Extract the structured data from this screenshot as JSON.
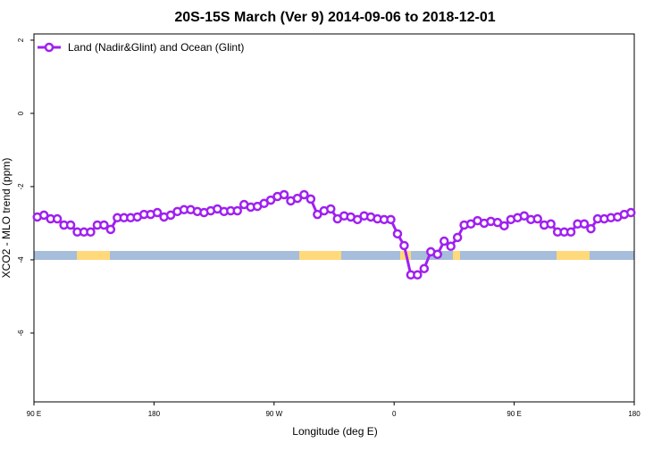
{
  "chart_data": {
    "type": "line",
    "title": "20S-15S March (Ver 9)   2014-09-06 to 2018-12-01",
    "x_label": "Longitude (deg E)",
    "y_label": "XCO2 - MLO trend (ppm)",
    "xlim": [
      90,
      540
    ],
    "ylim": [
      -7.88,
      2.17
    ],
    "xticks": [
      {
        "value": 90,
        "label": "90 E"
      },
      180,
      {
        "value": 270,
        "label": "90 W"
      },
      {
        "value": 360,
        "label": "0"
      },
      {
        "value": 450,
        "label": "90 E"
      },
      {
        "value": 540,
        "label": "180"
      }
    ],
    "yticks": [
      2,
      0,
      -2,
      -4,
      -6
    ],
    "legend": "top-left",
    "x": [
      92.5,
      97.5,
      102.5,
      107.5,
      112.5,
      117.5,
      122.5,
      127.5,
      132.5,
      137.5,
      142.5,
      147.5,
      152.5,
      157.5,
      162.5,
      167.5,
      172.5,
      177.5,
      182.5,
      187.5,
      192.5,
      197.5,
      202.5,
      207.5,
      212.5,
      217.5,
      222.5,
      227.5,
      232.5,
      237.5,
      242.5,
      247.5,
      252.5,
      257.5,
      262.5,
      267.5,
      272.5,
      277.5,
      282.5,
      287.5,
      292.5,
      297.5,
      302.5,
      307.5,
      312.5,
      317.5,
      322.5,
      327.5,
      332.5,
      337.5,
      342.5,
      347.5,
      352.5,
      357.5,
      362.5,
      367.5,
      372.5,
      377.5,
      382.5,
      387.5,
      392.5,
      397.5,
      402.5,
      407.5,
      412.5,
      417.5,
      422.5,
      427.5,
      432.5,
      437.5,
      442.5,
      447.5,
      452.5,
      457.5,
      462.5,
      467.5,
      472.5,
      477.5,
      482.5,
      487.5,
      492.5,
      497.5,
      502.5,
      507.5,
      512.5,
      517.5,
      522.5,
      527.5,
      532.5,
      537.5
    ],
    "series": [
      {
        "name": "Land (Nadir&Glint) and Ocean (Glint)",
        "color": "#a020f0",
        "values": [
          -2.83,
          -2.78,
          -2.88,
          -2.88,
          -3.05,
          -3.05,
          -3.24,
          -3.24,
          -3.24,
          -3.05,
          -3.05,
          -3.17,
          -2.85,
          -2.85,
          -2.85,
          -2.83,
          -2.76,
          -2.76,
          -2.71,
          -2.83,
          -2.78,
          -2.68,
          -2.63,
          -2.63,
          -2.68,
          -2.71,
          -2.66,
          -2.61,
          -2.68,
          -2.66,
          -2.66,
          -2.49,
          -2.56,
          -2.54,
          -2.46,
          -2.37,
          -2.27,
          -2.22,
          -2.39,
          -2.32,
          -2.22,
          -2.34,
          -2.76,
          -2.66,
          -2.61,
          -2.88,
          -2.8,
          -2.83,
          -2.9,
          -2.8,
          -2.83,
          -2.88,
          -2.9,
          -2.9,
          -3.29,
          -3.61,
          -4.41,
          -4.41,
          -4.24,
          -3.78,
          -3.85,
          -3.49,
          -3.63,
          -3.39,
          -3.05,
          -3.02,
          -2.93,
          -3.0,
          -2.95,
          -2.98,
          -3.07,
          -2.9,
          -2.85,
          -2.8,
          -2.9,
          -2.88,
          -3.05,
          -3.02,
          -3.24,
          -3.24,
          -3.24,
          -3.02,
          -3.02,
          -3.15,
          -2.88,
          -2.88,
          -2.85,
          -2.83,
          -2.76,
          -2.71
        ]
      }
    ]
  }
}
